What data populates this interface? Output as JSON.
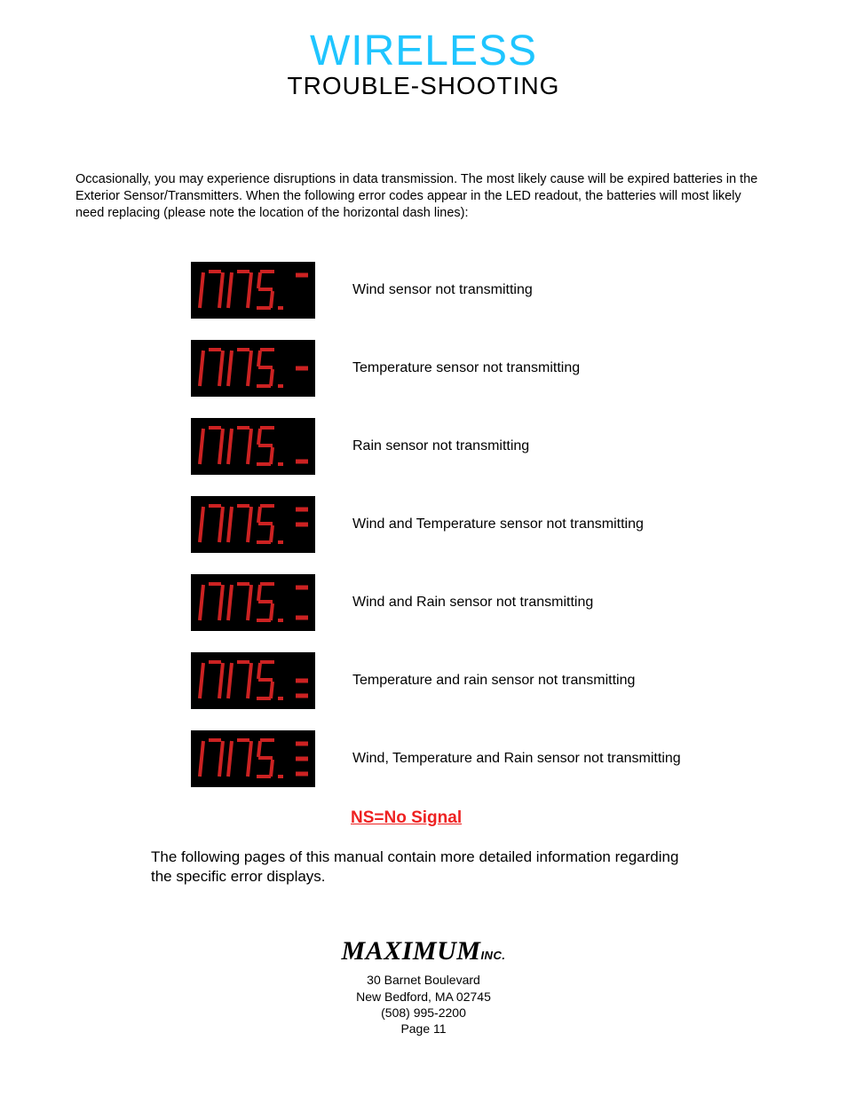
{
  "colors": {
    "title_cyan": "#1fc5ff",
    "title_black": "#000000",
    "led_bg": "#000000",
    "led_red": "#cc2222",
    "ns_red": "#ee2222",
    "text": "#000000"
  },
  "title": {
    "main": "WIRELESS",
    "sub": "TROUBLE-SHOOTING"
  },
  "intro": "Occasionally, you may experience disruptions in data transmission.  The most likely cause will be expired batteries in the Exterior Sensor/Transmitters.  When the following error codes appear in the LED readout, the batteries will most likely need replacing (please note the location of the horizontal dash lines):",
  "error_rows": [
    {
      "label": "Wind sensor not transmitting",
      "dash": {
        "top": true,
        "mid": false,
        "bot": false
      }
    },
    {
      "label": "Temperature sensor not transmitting",
      "dash": {
        "top": false,
        "mid": true,
        "bot": false
      }
    },
    {
      "label": "Rain sensor not transmitting",
      "dash": {
        "top": false,
        "mid": false,
        "bot": true
      }
    },
    {
      "label": "Wind and Temperature sensor not transmitting",
      "dash": {
        "top": true,
        "mid": true,
        "bot": false
      }
    },
    {
      "label": "Wind and Rain sensor not transmitting",
      "dash": {
        "top": true,
        "mid": false,
        "bot": true
      }
    },
    {
      "label": "Temperature and rain sensor not transmitting",
      "dash": {
        "top": false,
        "mid": true,
        "bot": true
      }
    },
    {
      "label": "Wind, Temperature and Rain sensor not transmitting",
      "dash": {
        "top": true,
        "mid": true,
        "bot": true
      }
    }
  ],
  "led_style": {
    "digit_stroke_width": 4,
    "digit_color": "#cc2222",
    "bg": "#000000",
    "dash_stroke_width": 5
  },
  "ns_text": "NS=No Signal",
  "following_text": "The following pages of this manual contain more detailed information regarding the specific error displays.",
  "footer": {
    "logo_main": "MAXIMUM",
    "logo_suffix": "INC.",
    "address_line1": "30 Barnet Boulevard",
    "address_line2": "New Bedford, MA 02745",
    "phone": "(508) 995-2200",
    "page": "Page 11"
  }
}
